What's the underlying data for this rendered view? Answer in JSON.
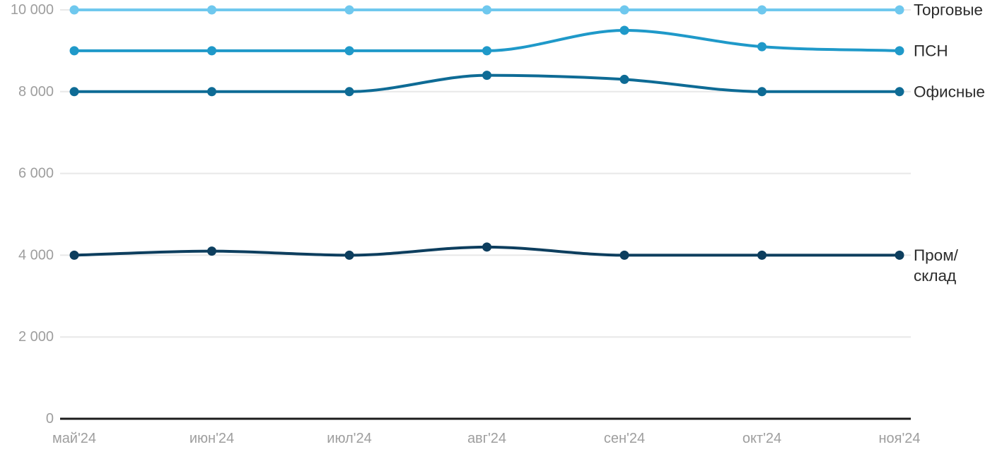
{
  "chart_data": {
    "type": "line",
    "title": "",
    "xlabel": "",
    "ylabel": "",
    "x_labels": [
      "май'24",
      "июн'24",
      "июл'24",
      "авг'24",
      "сен'24",
      "окт'24",
      "ноя'24"
    ],
    "ylim": [
      0,
      10000
    ],
    "yticks": [
      {
        "value": 0,
        "label": "0"
      },
      {
        "value": 2000,
        "label": "2 000"
      },
      {
        "value": 4000,
        "label": "4 000"
      },
      {
        "value": 6000,
        "label": "6 000"
      },
      {
        "value": 8000,
        "label": "8 000"
      },
      {
        "value": 10000,
        "label": "10 000"
      }
    ],
    "grid": true,
    "legend_position": "right-of-line-ends",
    "series": [
      {
        "name": "Торговые",
        "label_lines": [
          "Торговые"
        ],
        "color": "#6FC8EE",
        "values": [
          10000,
          10000,
          10000,
          10000,
          10000,
          10000,
          10000
        ]
      },
      {
        "name": "ПСН",
        "label_lines": [
          "ПСН"
        ],
        "color": "#1F99C9",
        "values": [
          9000,
          9000,
          9000,
          9000,
          9500,
          9100,
          9000
        ]
      },
      {
        "name": "Офисные",
        "label_lines": [
          "Офисные"
        ],
        "color": "#0E6B95",
        "values": [
          8000,
          8000,
          8000,
          8400,
          8300,
          8000,
          8000
        ]
      },
      {
        "name": "Пром/склад",
        "label_lines": [
          "Пром/",
          "склад"
        ],
        "color": "#0D3E5E",
        "values": [
          4000,
          4100,
          4000,
          4200,
          4000,
          4000,
          4000
        ]
      }
    ],
    "colors": {
      "background": "#ffffff",
      "grid": "#e8e8e8",
      "axis_line": "#1c1c1c",
      "tick_text": "#9e9e9e",
      "legend_text": "#2b2b2b"
    }
  }
}
